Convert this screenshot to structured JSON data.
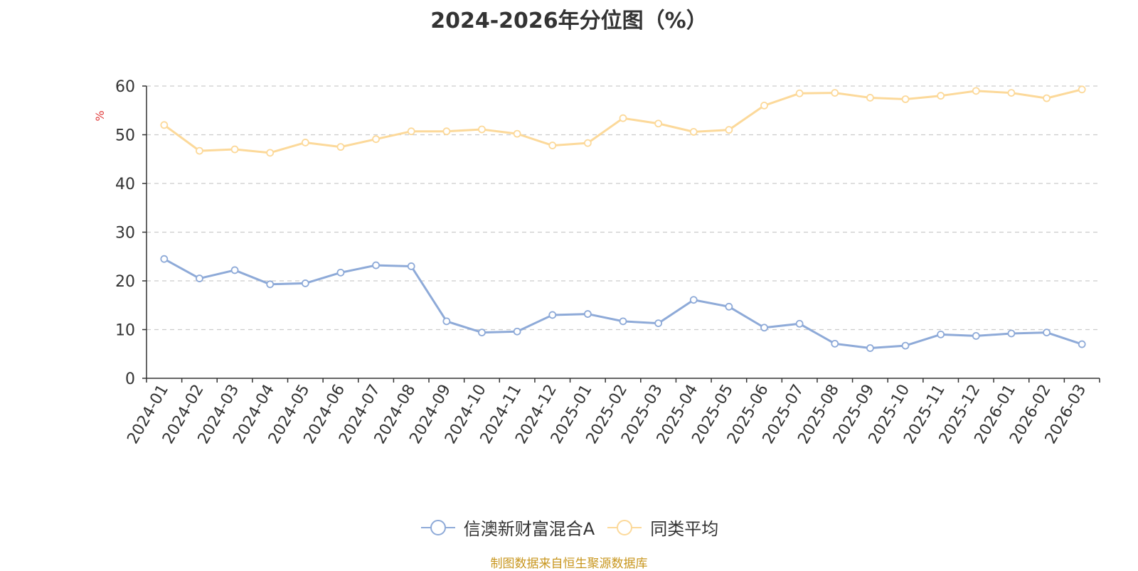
{
  "chart_data": {
    "type": "line",
    "title": "2024-2026年分位图（%）",
    "ylabel": "%",
    "xlabel": "",
    "ylim": [
      0,
      60
    ],
    "yticks": [
      0,
      10,
      20,
      30,
      40,
      50,
      60
    ],
    "grid": true,
    "legend_position": "bottom-center",
    "categories": [
      "2024-01",
      "2024-02",
      "2024-03",
      "2024-04",
      "2024-05",
      "2024-06",
      "2024-07",
      "2024-08",
      "2024-09",
      "2024-10",
      "2024-11",
      "2024-12",
      "2025-01",
      "2025-02",
      "2025-03",
      "2025-04",
      "2025-05",
      "2025-06",
      "2025-07",
      "2025-08",
      "2025-09",
      "2025-10",
      "2025-11",
      "2025-12",
      "2026-01",
      "2026-02",
      "2026-03"
    ],
    "series": [
      {
        "name": "信澳新财富混合A",
        "color": "#8eaad8",
        "values": [
          24.5,
          20.5,
          22.2,
          19.3,
          19.5,
          21.7,
          23.2,
          23.0,
          11.7,
          9.4,
          9.6,
          13.0,
          13.2,
          11.7,
          11.3,
          16.1,
          14.7,
          10.4,
          11.2,
          7.1,
          6.2,
          6.7,
          9.0,
          8.7,
          9.2,
          9.4,
          7.0
        ]
      },
      {
        "name": "同类平均",
        "color": "#fcd99a",
        "values": [
          52.0,
          46.7,
          47.0,
          46.3,
          48.4,
          47.5,
          49.1,
          50.7,
          50.7,
          51.1,
          50.2,
          47.8,
          48.3,
          53.4,
          52.3,
          50.6,
          51.0,
          56.0,
          58.5,
          58.6,
          57.6,
          57.3,
          58.0,
          59.0,
          58.6,
          57.5,
          59.3
        ]
      }
    ]
  },
  "legend": {
    "series1": "信澳新财富混合A",
    "series2": "同类平均"
  },
  "source": "制图数据来自恒生聚源数据库",
  "colors": {
    "title": "#333333",
    "axis": "#333333",
    "grid": "#cccccc",
    "ylabel": "#e03c3c",
    "source": "#c8961e"
  }
}
